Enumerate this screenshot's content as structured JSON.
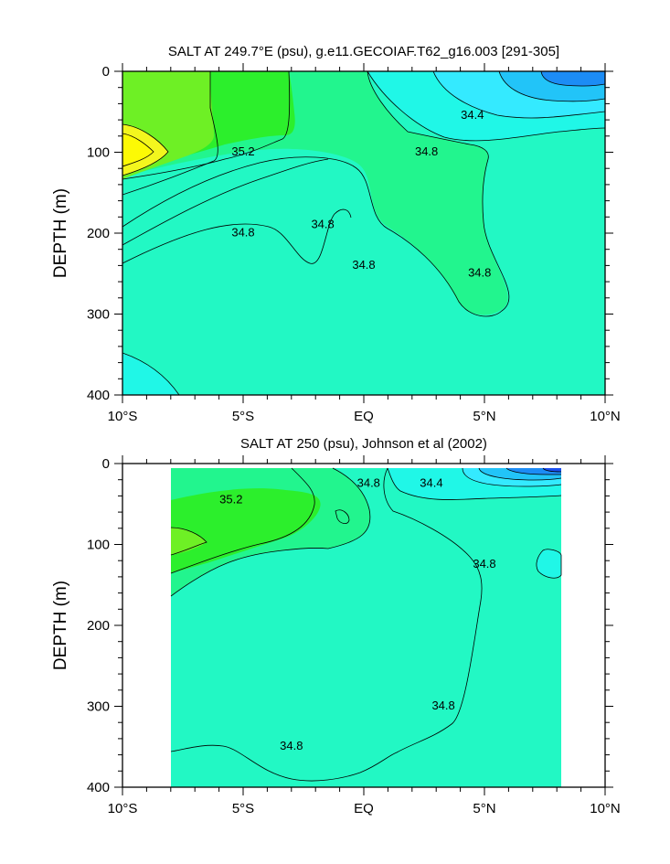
{
  "colors": {
    "c1": "#1a4ff0",
    "c2": "#1c8cf5",
    "c3": "#22c4f8",
    "c4": "#34eaff",
    "c5": "#20f7e7",
    "c6": "#22f8c4",
    "c7": "#22f58e",
    "c8": "#2cef2c",
    "c9": "#6ef025",
    "c10": "#b2f52a",
    "c11": "#f3f61e",
    "c12": "#fcfa05"
  },
  "chart_data": [
    {
      "type": "contour",
      "title": "SALT AT 249.7°E (psu), g.e11.GECOIAF.T62_g16.003 [291-305]",
      "xlabel": "",
      "ylabel": "DEPTH (m)",
      "xlim": [
        -10,
        10
      ],
      "ylim": [
        400,
        0
      ],
      "xticks": [
        -10,
        -5,
        0,
        5,
        10
      ],
      "xticklabels": [
        "10°S",
        "5°S",
        "EQ",
        "5°N",
        "10°N"
      ],
      "yticks": [
        0,
        100,
        200,
        300,
        400
      ],
      "yticklabels": [
        "0",
        "100",
        "200",
        "300",
        "400"
      ],
      "contour_interval": 0.2,
      "data_lon_range": [
        -10,
        10
      ],
      "contour_labels": [
        {
          "text": "35.2",
          "x": -5.0,
          "y": 100
        },
        {
          "text": "34.8",
          "x": 2.6,
          "y": 100
        },
        {
          "text": "34.4",
          "x": 4.5,
          "y": 55
        },
        {
          "text": "34.8",
          "x": -5.0,
          "y": 200
        },
        {
          "text": "34.8",
          "x": -1.7,
          "y": 190
        },
        {
          "text": "34.8",
          "x": 0.0,
          "y": 240
        },
        {
          "text": "34.8",
          "x": 4.8,
          "y": 250
        }
      ]
    },
    {
      "type": "contour",
      "title": "SALT AT 250 (psu), Johnson et al (2002)",
      "xlabel": "",
      "ylabel": "DEPTH (m)",
      "xlim": [
        -10,
        10
      ],
      "ylim": [
        400,
        0
      ],
      "xticks": [
        -10,
        -5,
        0,
        5,
        10
      ],
      "xticklabels": [
        "10°S",
        "5°S",
        "EQ",
        "5°N",
        "10°N"
      ],
      "yticks": [
        0,
        100,
        200,
        300,
        400
      ],
      "yticklabels": [
        "0",
        "100",
        "200",
        "300",
        "400"
      ],
      "contour_interval": 0.2,
      "data_lon_range": [
        -8,
        8.1
      ],
      "contour_labels": [
        {
          "text": "35.2",
          "x": -5.5,
          "y": 45
        },
        {
          "text": "34.8",
          "x": 0.2,
          "y": 25
        },
        {
          "text": "34.4",
          "x": 2.8,
          "y": 25
        },
        {
          "text": "34.8",
          "x": 5.0,
          "y": 125
        },
        {
          "text": "34.8",
          "x": 3.3,
          "y": 300
        },
        {
          "text": "34.8",
          "x": -3.0,
          "y": 350
        }
      ]
    }
  ]
}
